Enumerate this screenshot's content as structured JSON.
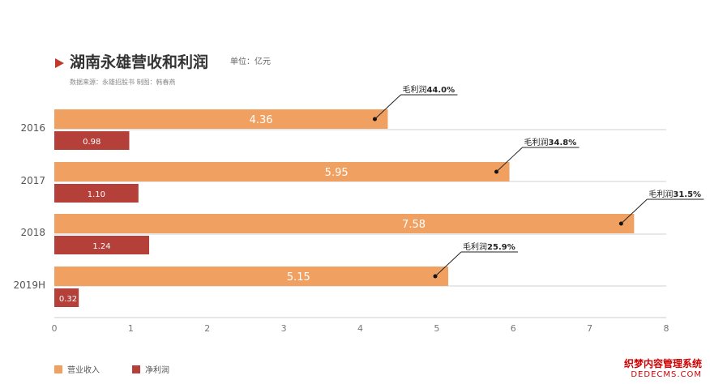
{
  "header": {
    "title": "湖南永雄营收和利润",
    "unit": "单位：亿元",
    "source": "数据来源：永雄招股书   制图：韩春燕"
  },
  "chart_data": {
    "type": "bar",
    "orientation": "horizontal",
    "categories": [
      "2016",
      "2017",
      "2018",
      "2019H"
    ],
    "series": [
      {
        "name": "营业收入",
        "color": "#f0a060",
        "values": [
          4.36,
          5.95,
          7.58,
          5.15
        ],
        "labels": [
          "4.36",
          "5.95",
          "7.58",
          "5.15"
        ]
      },
      {
        "name": "净利润",
        "color": "#b5403a",
        "values": [
          0.98,
          1.1,
          1.24,
          0.32
        ],
        "labels": [
          "0.98",
          "1.10",
          "1.24",
          "0.32"
        ]
      }
    ],
    "annotations": [
      {
        "category": "2016",
        "prefix": "毛利润",
        "value": "44.0%"
      },
      {
        "category": "2017",
        "prefix": "毛利润",
        "value": "34.8%"
      },
      {
        "category": "2018",
        "prefix": "毛利润",
        "value": "31.5%"
      },
      {
        "category": "2019H",
        "prefix": "毛利润",
        "value": "25.9%"
      }
    ],
    "xlim": [
      0,
      8
    ],
    "xticks": [
      0,
      1,
      2,
      3,
      4,
      5,
      6,
      7,
      8
    ],
    "grid": true,
    "legend_position": "bottom-left"
  },
  "watermark": {
    "line1": "织梦内容管理系统",
    "line2": "DEDECMS.COM"
  }
}
